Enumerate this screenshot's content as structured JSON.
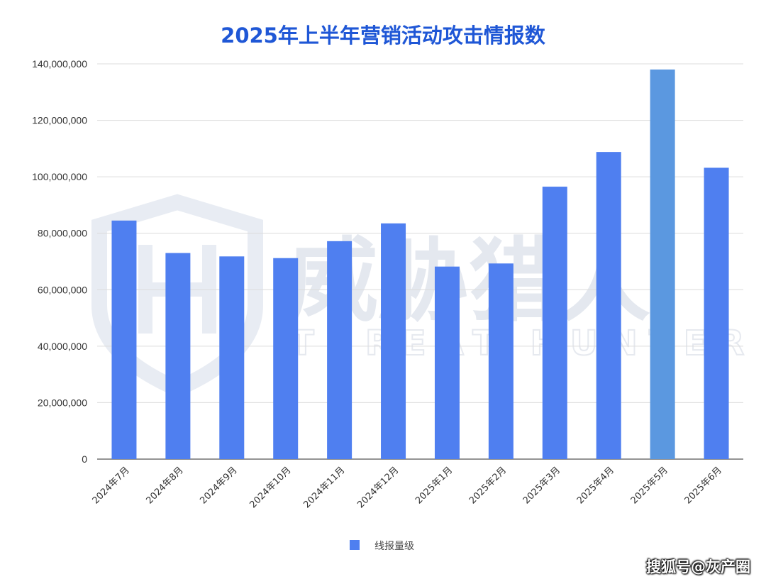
{
  "chart_data": {
    "type": "bar",
    "title": "2025年上半年营销活动攻击情报数",
    "categories": [
      "2024年7月",
      "2024年8月",
      "2024年9月",
      "2024年10月",
      "2024年11月",
      "2024年12月",
      "2025年1月",
      "2025年2月",
      "2025年3月",
      "2025年4月",
      "2025年5月",
      "2025年6月"
    ],
    "series": [
      {
        "name": "线报量级",
        "values": [
          84500000,
          73000000,
          71800000,
          71200000,
          77200000,
          83500000,
          68200000,
          69300000,
          96500000,
          108800000,
          138000000,
          103200000
        ]
      }
    ],
    "yticks": [
      "0",
      "20,000,000",
      "40,000,000",
      "60,000,000",
      "80,000,000",
      "100,000,000",
      "120,000,000",
      "140,000,000"
    ],
    "ylim": [
      0,
      140000000
    ],
    "grid": true,
    "legend_position": "bottom",
    "colors": {
      "bar": "#4f7ff0",
      "highlight_bar": "#5b98e0",
      "title": "#1f57d6"
    },
    "highlight_index": 10
  },
  "watermark": {
    "cn": "威胁猎人",
    "en": "THREAT HUNTER"
  },
  "footer": {
    "source": "搜狐号@灰产圈"
  }
}
